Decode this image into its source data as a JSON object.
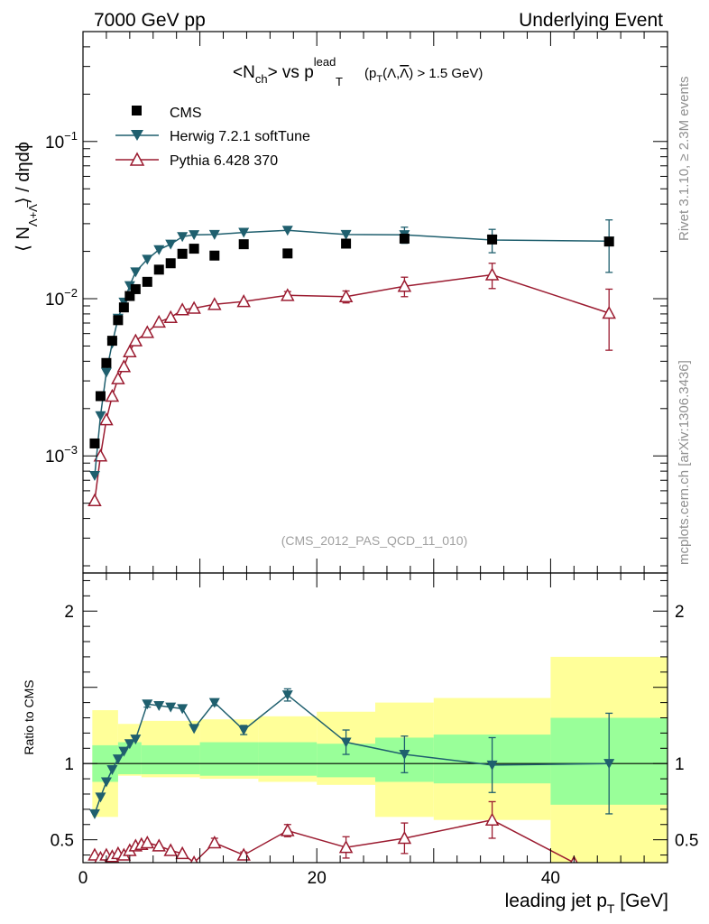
{
  "header": {
    "left": "7000 GeV pp",
    "right": "Underlying Event"
  },
  "side_labels": {
    "rivet": "Rivet 3.1.10, ≥ 2.3M events",
    "mcplots": "mcplots.cern.ch [arXiv:1306.3436]"
  },
  "chart_data": [
    {
      "type": "scatter",
      "panel": "main",
      "title_parts": {
        "n": "<N",
        "n_sub": "ch",
        "vs": "> vs p",
        "pt_sup": "lead",
        "pt_sub": "T",
        "cut_a": "(p",
        "cut_sub": "T",
        "cut_b": "(Λ,",
        "cut_bar": "Λ",
        "cut_c": ") > 1.5 GeV)"
      },
      "ylabel_parts": {
        "a": "⟨ N",
        "sub": "Λ+Λ̅",
        "b": "⟩ / dηdϕ"
      },
      "watermark": "(CMS_2012_PAS_QCD_11_010)",
      "xlim": [
        0,
        50
      ],
      "ylim": [
        0.00018,
        0.5
      ],
      "yscale": "log",
      "ytick_labels": [
        {
          "value": 0.001,
          "base": "10",
          "exp": "−3"
        },
        {
          "value": 0.01,
          "base": "10",
          "exp": "−2"
        },
        {
          "value": 0.1,
          "base": "10",
          "exp": "−1"
        }
      ],
      "legend_position": "top-left",
      "series": [
        {
          "name": "CMS",
          "color": "#000000",
          "marker": "square",
          "x": [
            1.0,
            1.5,
            2.0,
            2.5,
            3.0,
            3.5,
            4.0,
            4.5,
            5.5,
            6.5,
            7.5,
            8.5,
            9.5,
            11.25,
            13.75,
            17.5,
            22.5,
            27.5,
            35.0,
            45.0
          ],
          "y": [
            0.0012,
            0.0024,
            0.0039,
            0.0054,
            0.0073,
            0.0088,
            0.0104,
            0.0115,
            0.0128,
            0.0153,
            0.0168,
            0.0193,
            0.0208,
            0.0188,
            0.0222,
            0.0194,
            0.0224,
            0.0241,
            0.0238,
            0.0231
          ]
        },
        {
          "name": "Herwig 7.2.1 softTune",
          "color": "#1f5f6e",
          "marker": "triangle-down",
          "x": [
            1.0,
            1.5,
            2.0,
            2.5,
            3.0,
            3.5,
            4.0,
            4.5,
            5.5,
            6.5,
            7.5,
            8.5,
            9.5,
            11.25,
            13.75,
            17.5,
            22.5,
            27.5,
            35.0,
            45.0
          ],
          "y": [
            0.00075,
            0.0018,
            0.0034,
            0.0052,
            0.0075,
            0.0095,
            0.0121,
            0.0148,
            0.0178,
            0.0205,
            0.0222,
            0.0248,
            0.0255,
            0.0256,
            0.0264,
            0.0272,
            0.0256,
            0.0255,
            0.0236,
            0.0232
          ],
          "yerr": [
            0,
            0,
            0,
            0,
            0,
            0,
            0,
            0,
            0,
            0,
            0,
            0,
            0,
            0,
            0,
            0,
            0,
            0.003,
            0.004,
            0.0085
          ]
        },
        {
          "name": "Pythia 6.428 370",
          "color": "#9b1b30",
          "marker": "triangle-up-open",
          "x": [
            1.0,
            1.5,
            2.0,
            2.5,
            3.0,
            3.5,
            4.0,
            4.5,
            5.5,
            6.5,
            7.5,
            8.5,
            9.5,
            11.25,
            13.75,
            17.5,
            22.5,
            27.5,
            35.0,
            45.0
          ],
          "y": [
            0.00052,
            0.001,
            0.0017,
            0.0024,
            0.0031,
            0.0037,
            0.0046,
            0.0054,
            0.0061,
            0.0071,
            0.0076,
            0.0085,
            0.0087,
            0.0092,
            0.0096,
            0.0105,
            0.0103,
            0.012,
            0.0142,
            0.0081
          ],
          "yerr": [
            0,
            0,
            0,
            0,
            0,
            0,
            0,
            0,
            0,
            0,
            0,
            0,
            0,
            0,
            0,
            0.0006,
            0.0009,
            0.0017,
            0.0026,
            0.0034
          ]
        }
      ]
    },
    {
      "type": "line",
      "panel": "ratio",
      "ylabel": "Ratio to CMS",
      "xlabel_parts": {
        "a": "leading jet p",
        "sub": "T",
        "b": " [GeV]"
      },
      "xlim": [
        0,
        50
      ],
      "ylim": [
        0.35,
        2.25
      ],
      "xticks": [
        0,
        20,
        40
      ],
      "yticks": [
        0.5,
        1,
        2
      ],
      "ytick_labels": [
        "0.5",
        "1",
        "2"
      ],
      "xtick_labels": [
        "0",
        "20",
        "40"
      ],
      "colors": {
        "stat": "#99ff99",
        "syst": "#ffff99"
      },
      "bands": [
        {
          "x0": 0.8,
          "x1": 3.0,
          "syst": [
            0.65,
            1.35
          ],
          "stat": [
            0.88,
            1.12
          ]
        },
        {
          "x0": 3.0,
          "x1": 5.0,
          "syst": [
            0.92,
            1.26
          ],
          "stat": [
            0.93,
            1.14
          ]
        },
        {
          "x0": 5.0,
          "x1": 10.0,
          "syst": [
            0.91,
            1.28
          ],
          "stat": [
            0.93,
            1.12
          ]
        },
        {
          "x0": 10.0,
          "x1": 15.0,
          "syst": [
            0.9,
            1.29
          ],
          "stat": [
            0.92,
            1.14
          ]
        },
        {
          "x0": 15.0,
          "x1": 20.0,
          "syst": [
            0.88,
            1.31
          ],
          "stat": [
            0.92,
            1.14
          ]
        },
        {
          "x0": 20.0,
          "x1": 25.0,
          "syst": [
            0.86,
            1.34
          ],
          "stat": [
            0.91,
            1.13
          ]
        },
        {
          "x0": 25.0,
          "x1": 30.0,
          "syst": [
            0.65,
            1.4
          ],
          "stat": [
            0.88,
            1.17
          ]
        },
        {
          "x0": 30.0,
          "x1": 40.0,
          "syst": [
            0.63,
            1.43
          ],
          "stat": [
            0.87,
            1.19
          ]
        },
        {
          "x0": 40.0,
          "x1": 50.0,
          "syst": [
            0.2,
            1.7
          ],
          "stat": [
            0.73,
            1.3
          ]
        }
      ],
      "series": [
        {
          "name": "Herwig 7.2.1 softTune",
          "color": "#1f5f6e",
          "marker": "triangle-down",
          "x": [
            1.0,
            1.5,
            2.0,
            2.5,
            3.0,
            3.5,
            4.0,
            4.5,
            5.5,
            6.5,
            7.5,
            8.5,
            9.5,
            11.25,
            13.75,
            17.5,
            22.5,
            27.5,
            35.0,
            45.0
          ],
          "y": [
            0.67,
            0.78,
            0.88,
            0.96,
            1.03,
            1.08,
            1.13,
            1.16,
            1.39,
            1.38,
            1.37,
            1.36,
            1.23,
            1.4,
            1.22,
            1.45,
            1.14,
            1.06,
            0.99,
            1.0
          ],
          "yerr": [
            0,
            0,
            0,
            0,
            0,
            0,
            0,
            0,
            0.02,
            0,
            0,
            0,
            0,
            0.02,
            0.03,
            0.04,
            0.08,
            0.12,
            0.18,
            0.33
          ]
        },
        {
          "name": "Pythia 6.428 370",
          "color": "#9b1b30",
          "marker": "triangle-up-open",
          "x": [
            1.0,
            1.5,
            2.0,
            2.5,
            3.0,
            3.5,
            4.0,
            4.5,
            5.0,
            5.5,
            6.5,
            7.5,
            8.5,
            9.5,
            11.25,
            13.75,
            17.5,
            22.5,
            27.5,
            35.0,
            42.0
          ],
          "y": [
            0.4,
            0.38,
            0.4,
            0.39,
            0.41,
            0.4,
            0.43,
            0.46,
            0.47,
            0.48,
            0.46,
            0.43,
            0.41,
            0.35,
            0.48,
            0.4,
            0.56,
            0.45,
            0.51,
            0.63,
            0.35
          ],
          "yerr": [
            0,
            0,
            0,
            0,
            0,
            0,
            0,
            0,
            0,
            0,
            0,
            0,
            0,
            0,
            0.03,
            0.02,
            0.04,
            0.07,
            0.1,
            0.12,
            0
          ]
        }
      ]
    }
  ]
}
